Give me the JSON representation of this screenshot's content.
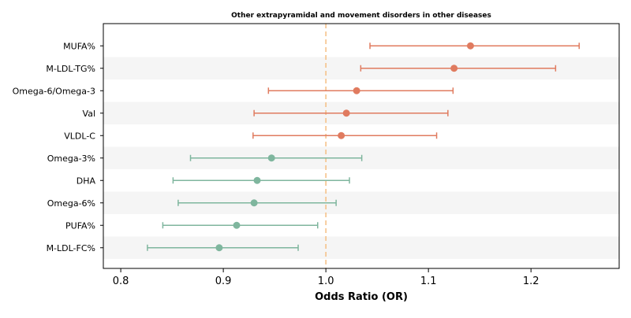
{
  "chart_data": {
    "type": "forest",
    "title": "Other extrapyramidal and movement disorders in other diseases",
    "xlabel": "Odds Ratio (OR)",
    "ylabel": "",
    "xlim": [
      0.783,
      1.286
    ],
    "xticks": [
      0.8,
      0.9,
      1.0,
      1.1,
      1.2
    ],
    "xtick_labels": [
      "0.8",
      "0.9",
      "1.0",
      "1.1",
      "1.2"
    ],
    "reference_line": 1.0,
    "grid": false,
    "row_banding": true,
    "colors": {
      "risk": "#E07B5F",
      "protective": "#7FB69E",
      "reference": "#F5BE82",
      "band": "#F5F5F5"
    },
    "rows": [
      {
        "label": "MUFA%",
        "or": 1.141,
        "lo": 1.043,
        "hi": 1.247,
        "group": "risk"
      },
      {
        "label": "M-LDL-TG%",
        "or": 1.125,
        "lo": 1.034,
        "hi": 1.224,
        "group": "risk"
      },
      {
        "label": "Omega-6/Omega-3",
        "or": 1.03,
        "lo": 0.944,
        "hi": 1.124,
        "group": "risk"
      },
      {
        "label": "Val",
        "or": 1.02,
        "lo": 0.93,
        "hi": 1.119,
        "group": "risk"
      },
      {
        "label": "VLDL-C",
        "or": 1.015,
        "lo": 0.929,
        "hi": 1.108,
        "group": "risk"
      },
      {
        "label": "Omega-3%",
        "or": 0.947,
        "lo": 0.868,
        "hi": 1.035,
        "group": "protective"
      },
      {
        "label": "DHA",
        "or": 0.933,
        "lo": 0.851,
        "hi": 1.023,
        "group": "protective"
      },
      {
        "label": "Omega-6%",
        "or": 0.93,
        "lo": 0.856,
        "hi": 1.01,
        "group": "protective"
      },
      {
        "label": "PUFA%",
        "or": 0.913,
        "lo": 0.841,
        "hi": 0.992,
        "group": "protective"
      },
      {
        "label": "M-LDL-FC%",
        "or": 0.896,
        "lo": 0.826,
        "hi": 0.973,
        "group": "protective"
      }
    ]
  }
}
